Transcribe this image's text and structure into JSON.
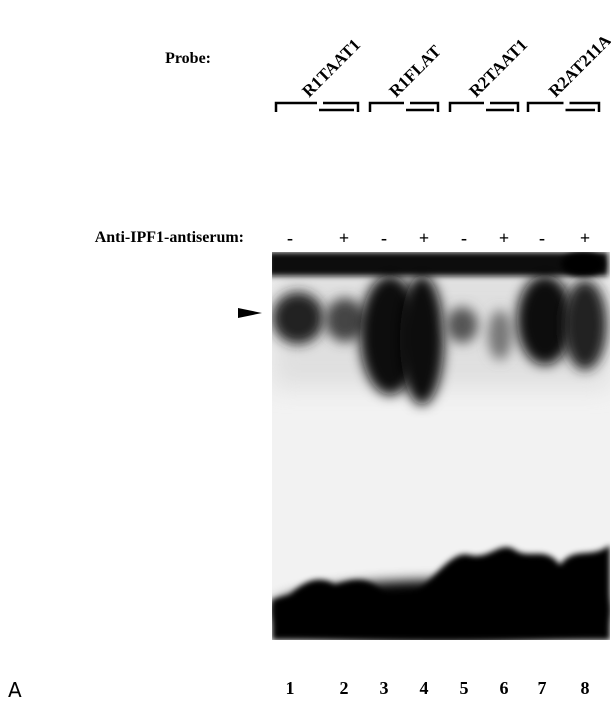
{
  "labels": {
    "probe": "Probe:",
    "antiserum": "Anti-IPF1-antiserum:",
    "panel": "A"
  },
  "probes": [
    "R1TAAT1",
    "R1FLAT",
    "R2TAAT1",
    "R2AT211A"
  ],
  "treatments": [
    "-",
    "+",
    "-",
    "+",
    "-",
    "+",
    "-",
    "+"
  ],
  "lanes": [
    "1",
    "2",
    "3",
    "4",
    "5",
    "6",
    "7",
    "8"
  ]
}
